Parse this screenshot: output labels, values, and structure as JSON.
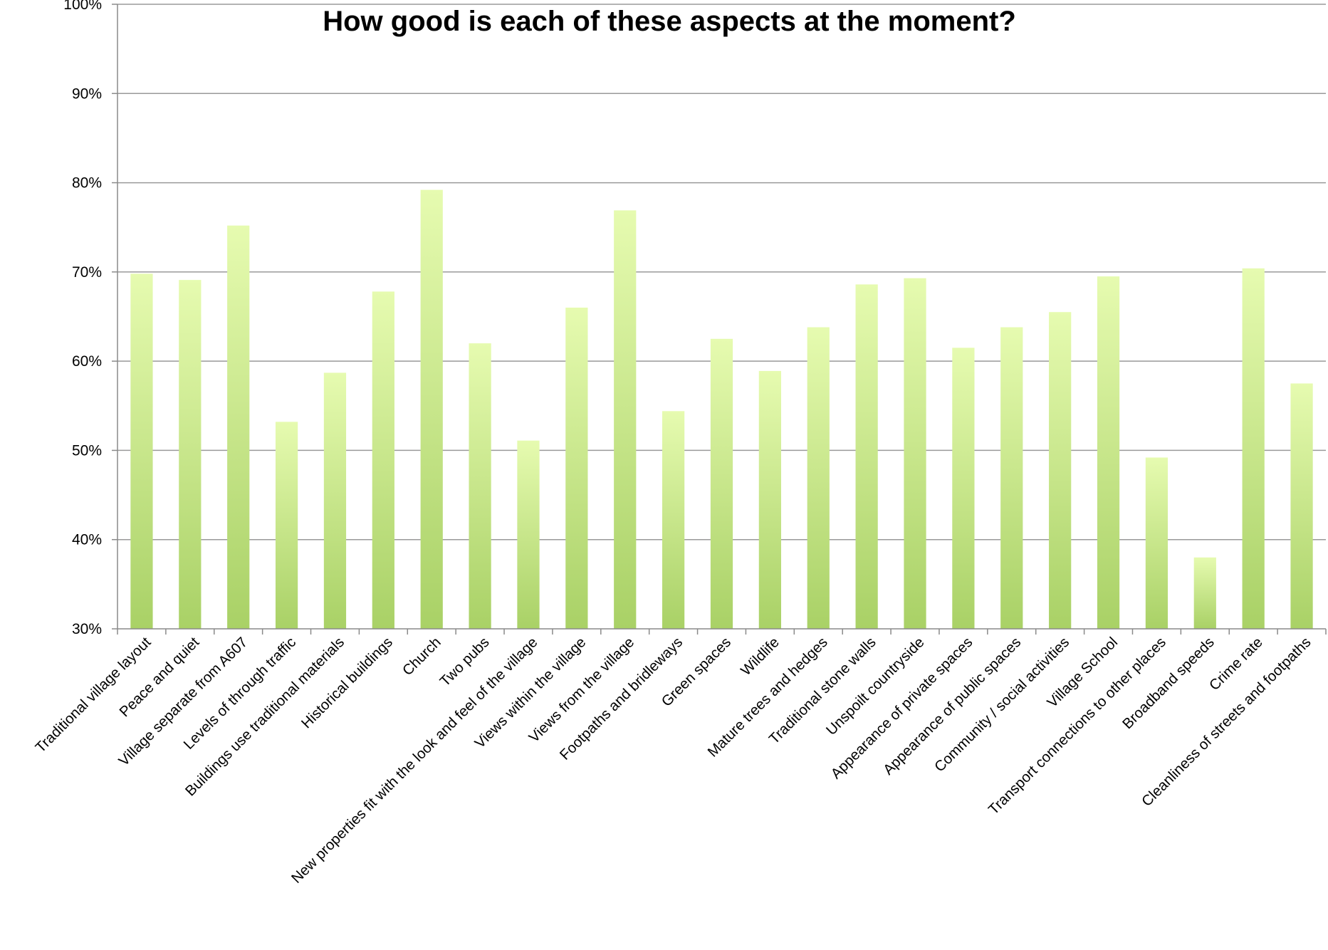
{
  "chart_data": {
    "type": "bar",
    "title": "How good is each of these aspects at the moment?",
    "xlabel": "",
    "ylabel": "",
    "ylim": [
      30,
      100
    ],
    "yticks": [
      30,
      40,
      50,
      60,
      70,
      80,
      90,
      100
    ],
    "ytick_format": "percent",
    "grid": true,
    "legend": "none",
    "colors": {
      "bar_top": "#e6fbb0",
      "bar_bottom": "#a9d166",
      "grid": "#9a9a9a",
      "axis": "#8a8a8a"
    },
    "categories": [
      "Traditional village layout",
      "Peace and quiet",
      "Village separate from A607",
      "Levels of through traffic",
      "Buildings use traditional materials",
      "Historical buildings",
      "Church",
      "Two pubs",
      "New properties fit with the look and feel of the village",
      "Views within the village",
      "Views from the village",
      "Footpaths and bridleways",
      "Green spaces",
      "Wildlife",
      "Mature trees and hedges",
      "Traditional stone walls",
      "Unspoilt countryside",
      "Appearance of private spaces",
      "Appearance of public spaces",
      "Community / social activities",
      "Village School",
      "Transport connections to other places",
      "Broadband speeds",
      "Crime rate",
      "Cleanliness of streets and footpaths"
    ],
    "values": [
      69.8,
      69.1,
      75.2,
      53.2,
      58.7,
      67.8,
      79.2,
      62.0,
      51.1,
      66.0,
      76.9,
      54.4,
      62.5,
      58.9,
      63.8,
      68.6,
      69.3,
      61.5,
      63.8,
      65.5,
      69.5,
      49.2,
      38.0,
      70.4,
      57.5
    ]
  }
}
